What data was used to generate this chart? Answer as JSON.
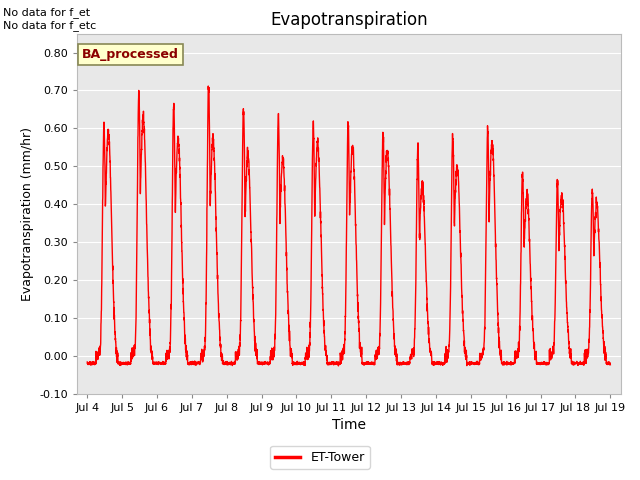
{
  "title": "Evapotranspiration",
  "xlabel": "Time",
  "ylabel": "Evapotranspiration (mm/hr)",
  "ylim": [
    -0.1,
    0.85
  ],
  "yticks": [
    -0.1,
    0.0,
    0.1,
    0.2,
    0.3,
    0.4,
    0.5,
    0.6,
    0.7,
    0.8
  ],
  "xtick_labels": [
    "Jul 4",
    "Jul 5",
    "Jul 6",
    "Jul 7",
    "Jul 8",
    "Jul 9",
    "Jul 10",
    "Jul 11",
    "Jul 12",
    "Jul 13",
    "Jul 14",
    "Jul 15",
    "Jul 16",
    "Jul 17",
    "Jul 18",
    "Jul 19"
  ],
  "line_color": "#ff0000",
  "line_width": 1.0,
  "legend_label": "ET-Tower",
  "annotation_text": "No data for f_et\nNo data for f_etc",
  "box_label": "BA_processed",
  "plot_bg_color": "#e8e8e8",
  "daily_peaks": [
    0.61,
    0.7,
    0.66,
    0.71,
    0.65,
    0.63,
    0.61,
    0.61,
    0.58,
    0.55,
    0.58,
    0.6,
    0.48,
    0.46
  ],
  "daily_peaks2": [
    0.59,
    0.63,
    0.57,
    0.57,
    0.53,
    0.52,
    0.56,
    0.55,
    0.54,
    0.45,
    0.5,
    0.56,
    0.42,
    0.42
  ],
  "n_days": 15
}
